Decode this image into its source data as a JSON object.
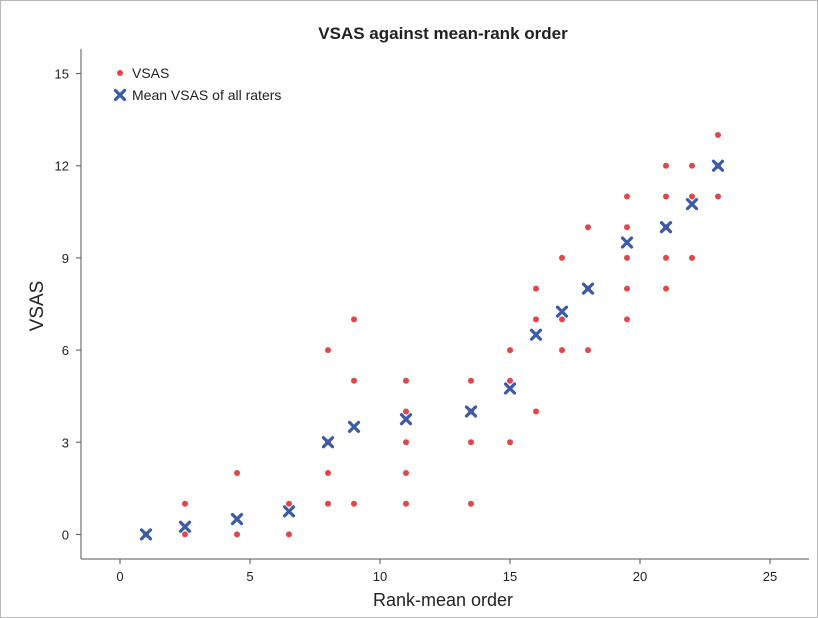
{
  "chart_data": {
    "type": "scatter",
    "title": "VSAS against mean-rank order",
    "xlabel": "Rank-mean order",
    "ylabel": "VSAS",
    "xlim": [
      -1.5,
      26.5
    ],
    "ylim": [
      -0.8,
      15.8
    ],
    "x_ticks": [
      0,
      5,
      10,
      15,
      20,
      25
    ],
    "y_ticks": [
      0,
      3,
      6,
      9,
      12,
      15
    ],
    "grid": false,
    "legend_position": "top-left",
    "series": [
      {
        "name": "VSAS",
        "marker": "dot",
        "color": "#e0474c",
        "points": [
          [
            1,
            0
          ],
          [
            2.5,
            0
          ],
          [
            2.5,
            1
          ],
          [
            4.5,
            0
          ],
          [
            4.5,
            2
          ],
          [
            6.5,
            0
          ],
          [
            6.5,
            1
          ],
          [
            8,
            1
          ],
          [
            8,
            2
          ],
          [
            8,
            3
          ],
          [
            8,
            6
          ],
          [
            9,
            1
          ],
          [
            9,
            5
          ],
          [
            9,
            7
          ],
          [
            11,
            1
          ],
          [
            11,
            2
          ],
          [
            11,
            3
          ],
          [
            11,
            4
          ],
          [
            11,
            5
          ],
          [
            13.5,
            1
          ],
          [
            13.5,
            3
          ],
          [
            13.5,
            4
          ],
          [
            13.5,
            5
          ],
          [
            15,
            3
          ],
          [
            15,
            5
          ],
          [
            15,
            6
          ],
          [
            16,
            4
          ],
          [
            16,
            7
          ],
          [
            16,
            8
          ],
          [
            17,
            6
          ],
          [
            17,
            7
          ],
          [
            17,
            9
          ],
          [
            18,
            6
          ],
          [
            18,
            8
          ],
          [
            18,
            10
          ],
          [
            19.5,
            7
          ],
          [
            19.5,
            8
          ],
          [
            19.5,
            9
          ],
          [
            19.5,
            10
          ],
          [
            19.5,
            11
          ],
          [
            21,
            8
          ],
          [
            21,
            9
          ],
          [
            21,
            10
          ],
          [
            21,
            11
          ],
          [
            21,
            12
          ],
          [
            22,
            9
          ],
          [
            22,
            11
          ],
          [
            22,
            12
          ],
          [
            23,
            11
          ],
          [
            23,
            12
          ],
          [
            23,
            13
          ]
        ]
      },
      {
        "name": "Mean VSAS of all raters",
        "marker": "x",
        "color": "#3b5ba5",
        "points": [
          [
            1,
            0
          ],
          [
            2.5,
            0.25
          ],
          [
            4.5,
            0.5
          ],
          [
            6.5,
            0.75
          ],
          [
            8,
            3
          ],
          [
            9,
            3.5
          ],
          [
            11,
            3.75
          ],
          [
            13.5,
            4
          ],
          [
            15,
            4.75
          ],
          [
            16,
            6.5
          ],
          [
            17,
            7.25
          ],
          [
            18,
            8
          ],
          [
            19.5,
            9.5
          ],
          [
            21,
            10
          ],
          [
            22,
            10.75
          ],
          [
            23,
            12
          ]
        ]
      }
    ]
  }
}
